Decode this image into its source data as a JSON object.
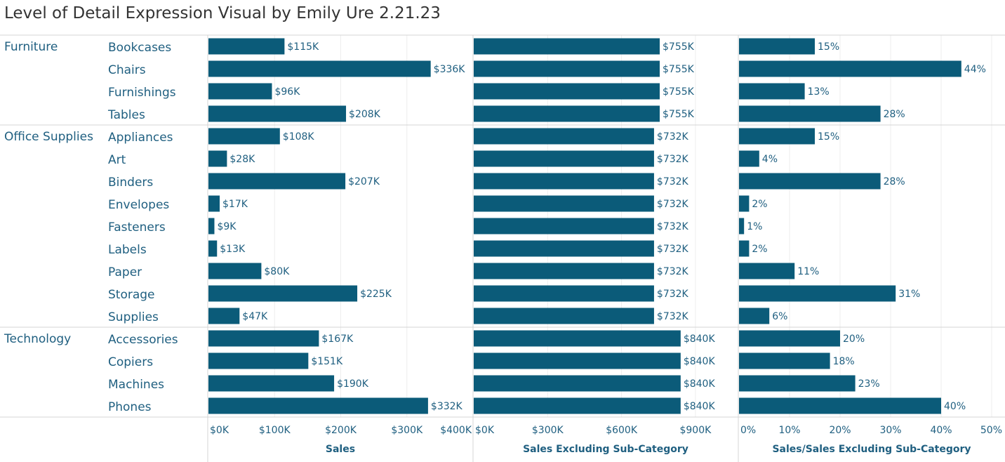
{
  "title": "Level of Detail Expression Visual by Emily Ure 2.21.23",
  "colors": {
    "bar": "#0b5b79",
    "text": "#1f5f80",
    "divider": "#d4d4d4",
    "grid": "#eeeeee"
  },
  "chart_data": {
    "type": "bar",
    "orientation": "horizontal",
    "grid": true,
    "rows": [
      {
        "category": "Furniture",
        "subcategory": "Bookcases"
      },
      {
        "category": "",
        "subcategory": "Chairs"
      },
      {
        "category": "",
        "subcategory": "Furnishings"
      },
      {
        "category": "",
        "subcategory": "Tables"
      },
      {
        "category": "Office Supplies",
        "subcategory": "Appliances"
      },
      {
        "category": "",
        "subcategory": "Art"
      },
      {
        "category": "",
        "subcategory": "Binders"
      },
      {
        "category": "",
        "subcategory": "Envelopes"
      },
      {
        "category": "",
        "subcategory": "Fasteners"
      },
      {
        "category": "",
        "subcategory": "Labels"
      },
      {
        "category": "",
        "subcategory": "Paper"
      },
      {
        "category": "",
        "subcategory": "Storage"
      },
      {
        "category": "",
        "subcategory": "Supplies"
      },
      {
        "category": "Technology",
        "subcategory": "Accessories"
      },
      {
        "category": "",
        "subcategory": "Copiers"
      },
      {
        "category": "",
        "subcategory": "Machines"
      },
      {
        "category": "",
        "subcategory": "Phones"
      }
    ],
    "series": [
      {
        "name": "Sales",
        "unit": "$K",
        "xlim": [
          0,
          400
        ],
        "ticks": [
          0,
          100,
          200,
          300,
          400
        ],
        "tick_labels": [
          "$0K",
          "$100K",
          "$200K",
          "$300K",
          "$400K"
        ],
        "values": [
          115,
          336,
          96,
          208,
          108,
          28,
          207,
          17,
          9,
          13,
          80,
          225,
          47,
          167,
          151,
          190,
          332
        ],
        "labels": [
          "$115K",
          "$336K",
          "$96K",
          "$208K",
          "$108K",
          "$28K",
          "$207K",
          "$17K",
          "$9K",
          "$13K",
          "$80K",
          "$225K",
          "$47K",
          "$167K",
          "$151K",
          "$190K",
          "$332K"
        ]
      },
      {
        "name": "Sales Excluding Sub-Category",
        "unit": "$K",
        "xlim": [
          0,
          1000
        ],
        "ticks": [
          0,
          300,
          600,
          900
        ],
        "tick_labels": [
          "$0K",
          "$300K",
          "$600K",
          "$900K"
        ],
        "values": [
          755,
          755,
          755,
          755,
          732,
          732,
          732,
          732,
          732,
          732,
          732,
          732,
          732,
          840,
          840,
          840,
          840
        ],
        "labels": [
          "$755K",
          "$755K",
          "$755K",
          "$755K",
          "$732K",
          "$732K",
          "$732K",
          "$732K",
          "$732K",
          "$732K",
          "$732K",
          "$732K",
          "$732K",
          "$840K",
          "$840K",
          "$840K",
          "$840K"
        ]
      },
      {
        "name": "Sales/Sales Excluding Sub-Category",
        "unit": "%",
        "xlim": [
          0,
          50
        ],
        "ticks": [
          0,
          10,
          20,
          30,
          40,
          50
        ],
        "tick_labels": [
          "0%",
          "10%",
          "20%",
          "30%",
          "40%",
          "50%"
        ],
        "values": [
          15,
          44,
          13,
          28,
          15,
          4,
          28,
          2,
          1,
          2,
          11,
          31,
          6,
          20,
          18,
          23,
          40
        ],
        "labels": [
          "15%",
          "44%",
          "13%",
          "28%",
          "15%",
          "4%",
          "28%",
          "2%",
          "1%",
          "2%",
          "11%",
          "31%",
          "6%",
          "20%",
          "18%",
          "23%",
          "40%"
        ]
      }
    ]
  }
}
